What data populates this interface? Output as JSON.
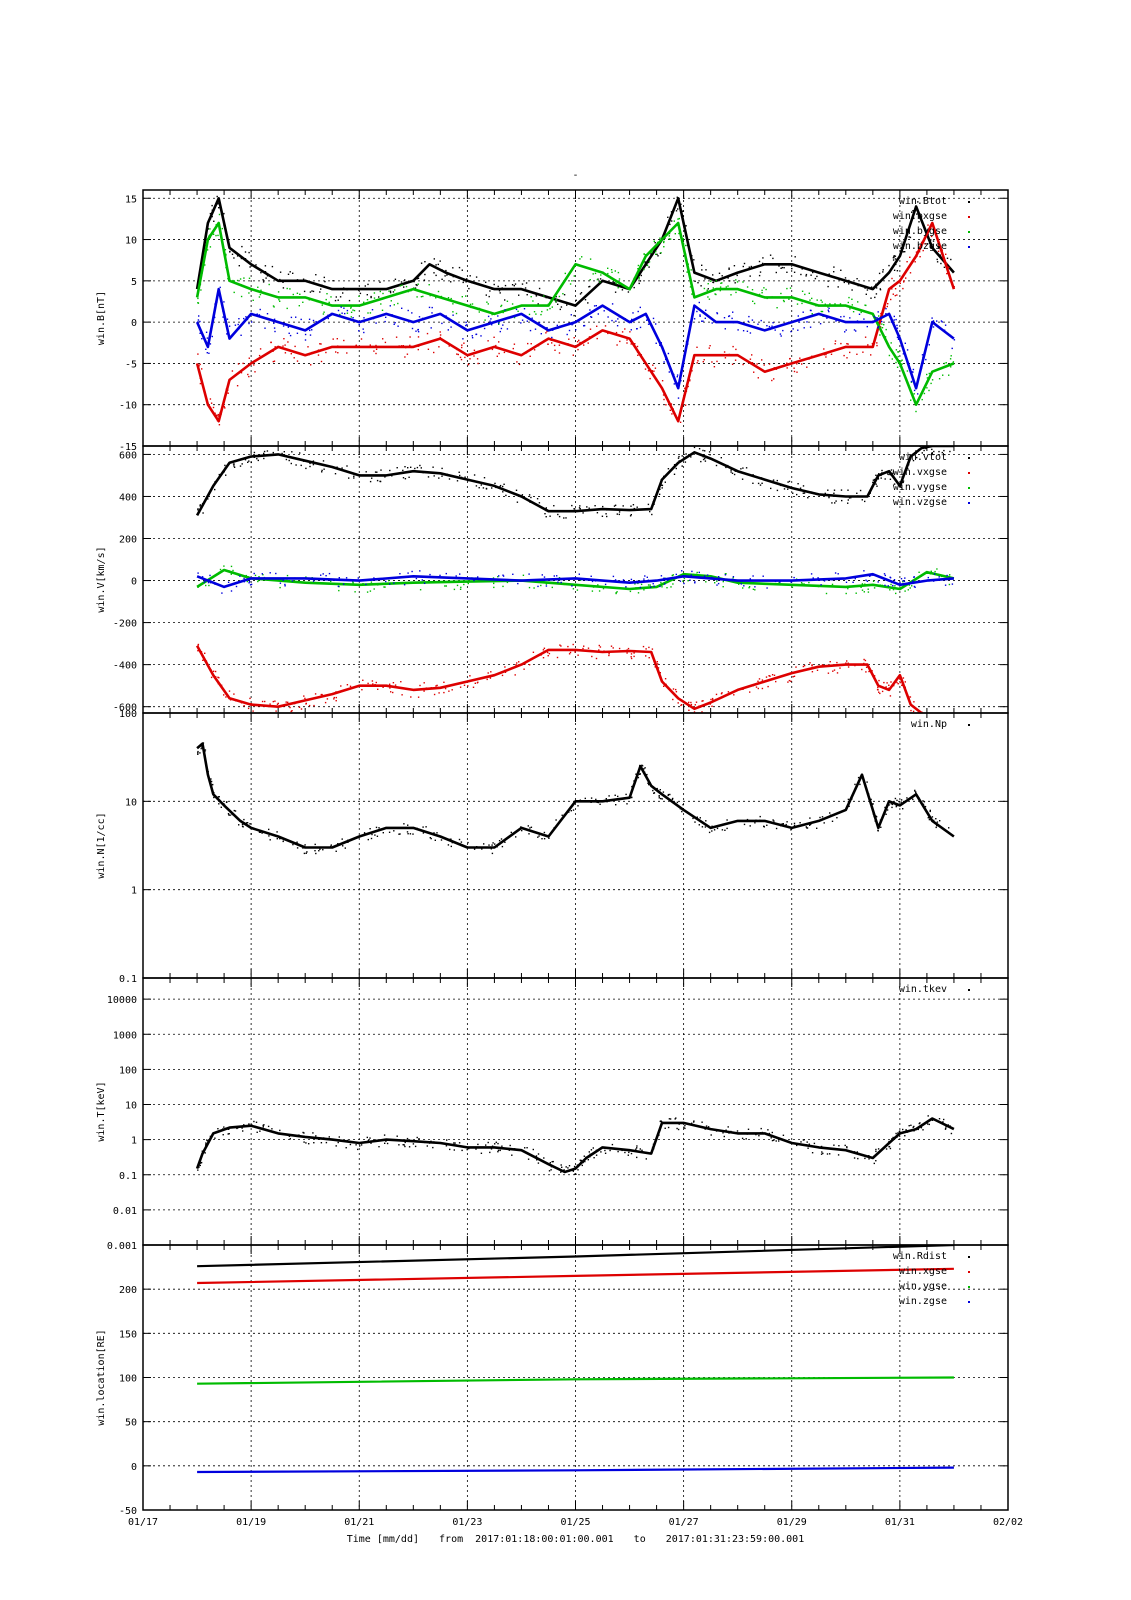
{
  "title": "-",
  "footer": {
    "xlabel": "Time [mm/dd]",
    "from_label": "from",
    "start": "2017:01:18:00:01:00.001",
    "to_label": "to",
    "end": "2017:01:31:23:59:00.001"
  },
  "x_axis": {
    "range_days": [
      17,
      33
    ],
    "tick_days": [
      17,
      19,
      21,
      23,
      25,
      27,
      29,
      31,
      33
    ],
    "tick_labels": [
      "01/17",
      "01/19",
      "01/21",
      "01/23",
      "01/25",
      "01/27",
      "01/29",
      "01/31",
      "02/02"
    ]
  },
  "colors": {
    "black": "#000000",
    "red": "#dd0000",
    "green": "#00bb00",
    "blue": "#0000dd"
  },
  "chart_data": [
    {
      "type": "scatter",
      "ylabel": "win.B[nT]",
      "ylim": [
        -15,
        16
      ],
      "yticks": [
        15,
        10,
        5,
        0,
        -5,
        -10,
        -15
      ],
      "ytick_labels": [
        "15",
        "10",
        "5",
        "0",
        "-5",
        "-10",
        "-15"
      ],
      "legend": [
        "win.Btot",
        "win.bxgse",
        "win.bygse",
        "win.bzgse"
      ],
      "series": [
        {
          "name": "win.Btot",
          "color": "black",
          "x": [
            18.0,
            18.2,
            18.4,
            18.6,
            19.0,
            19.5,
            20.0,
            20.5,
            21.0,
            21.5,
            22.0,
            22.3,
            22.6,
            23.0,
            23.5,
            24.0,
            24.5,
            25.0,
            25.5,
            26.0,
            26.3,
            26.6,
            26.9,
            27.2,
            27.6,
            28.0,
            28.5,
            29.0,
            29.5,
            30.0,
            30.5,
            30.8,
            31.0,
            31.3,
            31.6,
            32.0
          ],
          "y": [
            4,
            12,
            15,
            9,
            7,
            5,
            5,
            4,
            4,
            4,
            5,
            7,
            6,
            5,
            4,
            4,
            3,
            2,
            5,
            4,
            7,
            10,
            15,
            6,
            5,
            6,
            7,
            7,
            6,
            5,
            4,
            6,
            8,
            14,
            9,
            6
          ]
        },
        {
          "name": "win.bxgse",
          "color": "red",
          "x": [
            18.0,
            18.2,
            18.4,
            18.6,
            19.0,
            19.5,
            20.0,
            20.5,
            21.0,
            21.5,
            22.0,
            22.5,
            23.0,
            23.5,
            24.0,
            24.5,
            25.0,
            25.5,
            26.0,
            26.3,
            26.6,
            26.9,
            27.2,
            27.6,
            28.0,
            28.5,
            29.0,
            29.5,
            30.0,
            30.5,
            30.8,
            31.0,
            31.3,
            31.6,
            32.0
          ],
          "y": [
            -5,
            -10,
            -12,
            -7,
            -5,
            -3,
            -4,
            -3,
            -3,
            -3,
            -3,
            -2,
            -4,
            -3,
            -4,
            -2,
            -3,
            -1,
            -2,
            -5,
            -8,
            -12,
            -4,
            -4,
            -4,
            -6,
            -5,
            -4,
            -3,
            -3,
            4,
            5,
            8,
            12,
            4
          ]
        },
        {
          "name": "win.bygse",
          "color": "green",
          "x": [
            18.0,
            18.2,
            18.4,
            18.6,
            19.0,
            19.5,
            20.0,
            20.5,
            21.0,
            21.5,
            22.0,
            22.5,
            23.0,
            23.5,
            24.0,
            24.5,
            25.0,
            25.5,
            26.0,
            26.3,
            26.6,
            26.9,
            27.2,
            27.6,
            28.0,
            28.5,
            29.0,
            29.5,
            30.0,
            30.5,
            30.8,
            31.0,
            31.3,
            31.6,
            32.0
          ],
          "y": [
            3,
            10,
            12,
            5,
            4,
            3,
            3,
            2,
            2,
            3,
            4,
            3,
            2,
            1,
            2,
            2,
            7,
            6,
            4,
            8,
            10,
            12,
            3,
            4,
            4,
            3,
            3,
            2,
            2,
            1,
            -3,
            -5,
            -10,
            -6,
            -5
          ]
        },
        {
          "name": "win.bzgse",
          "color": "blue",
          "x": [
            18.0,
            18.2,
            18.4,
            18.6,
            19.0,
            19.5,
            20.0,
            20.5,
            21.0,
            21.5,
            22.0,
            22.5,
            23.0,
            23.5,
            24.0,
            24.5,
            25.0,
            25.5,
            26.0,
            26.3,
            26.6,
            26.9,
            27.2,
            27.6,
            28.0,
            28.5,
            29.0,
            29.5,
            30.0,
            30.5,
            30.8,
            31.0,
            31.3,
            31.6,
            32.0
          ],
          "y": [
            0,
            -3,
            4,
            -2,
            1,
            0,
            -1,
            1,
            0,
            1,
            0,
            1,
            -1,
            0,
            1,
            -1,
            0,
            2,
            0,
            1,
            -3,
            -8,
            2,
            0,
            0,
            -1,
            0,
            1,
            0,
            0,
            1,
            -2,
            -8,
            0,
            -2
          ]
        }
      ]
    },
    {
      "type": "scatter",
      "ylabel": "win.V[km/s]",
      "ylim": [
        -630,
        640
      ],
      "yticks": [
        600,
        400,
        200,
        0,
        -200,
        -400,
        -600
      ],
      "ytick_labels": [
        "600",
        "400",
        "200",
        "0",
        "-200",
        "-400",
        "-600"
      ],
      "legend": [
        "win.vtot",
        "win.vxgse",
        "win.vygse",
        "win.vzgse"
      ],
      "series": [
        {
          "name": "win.vtot",
          "color": "black",
          "x": [
            18.0,
            18.3,
            18.6,
            19.0,
            19.5,
            20.0,
            20.5,
            21.0,
            21.5,
            22.0,
            22.5,
            23.0,
            23.5,
            24.0,
            24.5,
            25.0,
            25.5,
            26.0,
            26.4,
            26.6,
            26.9,
            27.2,
            27.5,
            28.0,
            28.5,
            29.0,
            29.5,
            30.0,
            30.4,
            30.6,
            30.8,
            31.0,
            31.2,
            31.4,
            31.6,
            32.0
          ],
          "y": [
            310,
            450,
            560,
            590,
            600,
            570,
            540,
            500,
            500,
            520,
            510,
            480,
            450,
            400,
            330,
            330,
            340,
            335,
            340,
            480,
            560,
            610,
            580,
            520,
            480,
            440,
            410,
            400,
            400,
            500,
            520,
            450,
            590,
            630,
            640,
            640
          ]
        },
        {
          "name": "win.vxgse",
          "color": "red",
          "x": [
            18.0,
            18.3,
            18.6,
            19.0,
            19.5,
            20.0,
            20.5,
            21.0,
            21.5,
            22.0,
            22.5,
            23.0,
            23.5,
            24.0,
            24.5,
            25.0,
            25.5,
            26.0,
            26.4,
            26.6,
            26.9,
            27.2,
            27.5,
            28.0,
            28.5,
            29.0,
            29.5,
            30.0,
            30.4,
            30.6,
            30.8,
            31.0,
            31.2,
            31.4
          ],
          "y": [
            -310,
            -450,
            -560,
            -590,
            -600,
            -570,
            -540,
            -500,
            -500,
            -520,
            -510,
            -480,
            -450,
            -400,
            -330,
            -330,
            -340,
            -335,
            -340,
            -480,
            -560,
            -610,
            -580,
            -520,
            -480,
            -440,
            -410,
            -400,
            -400,
            -500,
            -520,
            -450,
            -590,
            -630
          ]
        },
        {
          "name": "win.vygse",
          "color": "green",
          "x": [
            18.0,
            18.5,
            19.0,
            20.0,
            21.0,
            22.0,
            23.0,
            24.0,
            25.0,
            26.0,
            26.5,
            27.0,
            27.5,
            28.0,
            29.0,
            30.0,
            30.5,
            31.0,
            31.5,
            32.0
          ],
          "y": [
            -30,
            50,
            10,
            -10,
            -20,
            -10,
            -5,
            0,
            -20,
            -40,
            -30,
            30,
            20,
            -10,
            -20,
            -30,
            -20,
            -40,
            40,
            10
          ]
        },
        {
          "name": "win.vzgse",
          "color": "blue",
          "x": [
            18.0,
            18.5,
            19.0,
            20.0,
            21.0,
            22.0,
            23.0,
            24.0,
            25.0,
            26.0,
            26.5,
            27.0,
            27.5,
            28.0,
            29.0,
            30.0,
            30.5,
            31.0,
            31.5,
            32.0
          ],
          "y": [
            20,
            -30,
            10,
            10,
            0,
            20,
            10,
            0,
            10,
            -10,
            0,
            20,
            10,
            0,
            0,
            10,
            30,
            -20,
            0,
            10
          ]
        }
      ]
    },
    {
      "type": "scatter",
      "ylabel": "win.N[1/cc]",
      "yscale": "log",
      "ylim": [
        0.1,
        100
      ],
      "yticks": [
        100,
        10,
        1,
        0.1
      ],
      "ytick_labels": [
        "100",
        "10",
        "1",
        "0.1"
      ],
      "legend": [
        "win.Np"
      ],
      "series": [
        {
          "name": "win.Np",
          "color": "black",
          "x": [
            18.0,
            18.1,
            18.2,
            18.3,
            18.5,
            18.8,
            19.0,
            19.5,
            20.0,
            20.5,
            21.0,
            21.5,
            22.0,
            22.5,
            23.0,
            23.5,
            24.0,
            24.5,
            25.0,
            25.5,
            26.0,
            26.2,
            26.4,
            26.6,
            27.0,
            27.5,
            28.0,
            28.5,
            29.0,
            29.5,
            30.0,
            30.3,
            30.5,
            30.6,
            30.8,
            31.0,
            31.3,
            31.6,
            32.0
          ],
          "y": [
            40,
            45,
            20,
            12,
            9,
            6,
            5,
            4,
            3,
            3,
            4,
            5,
            5,
            4,
            3,
            3,
            5,
            4,
            10,
            10,
            11,
            25,
            15,
            12,
            8,
            5,
            6,
            6,
            5,
            6,
            8,
            20,
            8,
            5,
            10,
            9,
            12,
            6,
            4
          ]
        }
      ]
    },
    {
      "type": "scatter",
      "ylabel": "win.T[keV]",
      "yscale": "log",
      "ylim": [
        0.001,
        40000
      ],
      "yticks": [
        10000,
        1000,
        100,
        10,
        1,
        0.1,
        0.01,
        0.001
      ],
      "ytick_labels": [
        "10000",
        "1000",
        "100",
        "10",
        "1",
        "0.1",
        "0.01",
        "0.001"
      ],
      "legend": [
        "win.tkev"
      ],
      "series": [
        {
          "name": "win.tkev",
          "color": "black",
          "x": [
            18.0,
            18.1,
            18.3,
            18.6,
            19.0,
            19.5,
            20.0,
            20.5,
            21.0,
            21.5,
            22.0,
            22.5,
            23.0,
            23.5,
            24.0,
            24.5,
            24.8,
            25.0,
            25.2,
            25.5,
            26.0,
            26.4,
            26.6,
            27.0,
            27.5,
            28.0,
            28.5,
            29.0,
            29.5,
            30.0,
            30.5,
            30.8,
            31.0,
            31.3,
            31.6,
            32.0
          ],
          "y": [
            0.15,
            0.4,
            1.5,
            2.2,
            2.5,
            1.5,
            1.2,
            1,
            0.8,
            1,
            0.9,
            0.8,
            0.6,
            0.6,
            0.5,
            0.2,
            0.12,
            0.15,
            0.3,
            0.6,
            0.5,
            0.4,
            3,
            3,
            2,
            1.5,
            1.5,
            0.8,
            0.6,
            0.5,
            0.3,
            0.8,
            1.5,
            2,
            4,
            2
          ]
        }
      ]
    },
    {
      "type": "scatter",
      "ylabel": "win.location[RE]",
      "ylim": [
        -50,
        250
      ],
      "yticks": [
        200,
        150,
        100,
        50,
        0,
        -50
      ],
      "ytick_labels": [
        "200",
        "150",
        "100",
        "50",
        "0",
        "-50"
      ],
      "legend": [
        "win.Rdist",
        "win.xgse",
        "win.ygse",
        "win.zgse"
      ],
      "series": [
        {
          "name": "win.Rdist",
          "color": "black",
          "x": [
            18.0,
            25.0,
            32.0
          ],
          "y": [
            226,
            237,
            250
          ]
        },
        {
          "name": "win.xgse",
          "color": "red",
          "x": [
            18.0,
            25.0,
            32.0
          ],
          "y": [
            207,
            215,
            223
          ]
        },
        {
          "name": "win.ygse",
          "color": "green",
          "x": [
            18.0,
            25.0,
            32.0
          ],
          "y": [
            93,
            98,
            100
          ]
        },
        {
          "name": "win.zgse",
          "color": "blue",
          "x": [
            18.0,
            25.0,
            32.0
          ],
          "y": [
            -7,
            -5,
            -2
          ]
        }
      ]
    }
  ]
}
